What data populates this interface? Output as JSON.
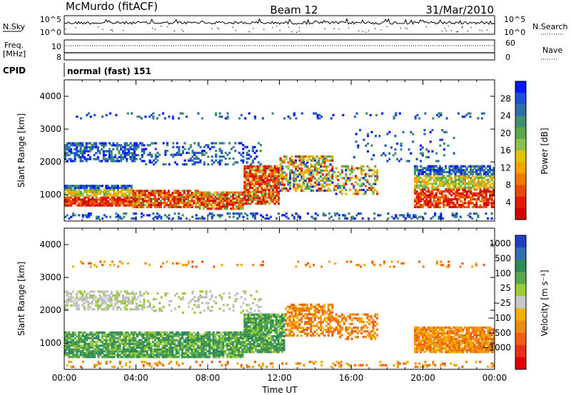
{
  "header": {
    "station": "McMurdo (fitACF)",
    "beam": "Beam 12",
    "date": "31/Mar/2010"
  },
  "status_panels": {
    "nsky_label": "N.Sky",
    "nsky_ticks": [
      "10^5",
      "10^0"
    ],
    "nsearch_label": "N.Search",
    "nsearch_ticks": [
      "10^5",
      "10^0"
    ],
    "freq_label_line1": "Freq.",
    "freq_label_line2": "[MHz]",
    "freq_ticks": [
      "10",
      "8"
    ],
    "nave_label": "Nave",
    "nave_ticks": [
      "60",
      "0"
    ],
    "cpid_label": "CPID",
    "cpid_value": "normal (fast) 151"
  },
  "chart_data": [
    {
      "type": "heatmap",
      "name": "power",
      "ylabel": "Slant Range [km]",
      "xlabel": "",
      "ylim": [
        200,
        4500
      ],
      "xlim": [
        0,
        24
      ],
      "y_ticks": [
        "1000",
        "2000",
        "3000",
        "4000"
      ],
      "x_ticks": [],
      "colorbar": {
        "label": "Power [dB]",
        "ticks": [
          "28",
          "24",
          "20",
          "16",
          "12",
          "8",
          "4"
        ],
        "colors": [
          "#0018ff",
          "#1f4fd6",
          "#2f6ea8",
          "#3f8f70",
          "#5aa84a",
          "#8bc34a",
          "#e0c000",
          "#f5a300",
          "#f07a00",
          "#ea4a00",
          "#e01a00",
          "#d40000"
        ]
      }
    },
    {
      "type": "heatmap",
      "name": "velocity",
      "ylabel": "Slant Range [km]",
      "xlabel": "Time UT",
      "ylim": [
        200,
        4500
      ],
      "xlim": [
        0,
        24
      ],
      "y_ticks": [
        "1000",
        "2000",
        "3000",
        "4000"
      ],
      "x_ticks": [
        "00:00",
        "04:00",
        "08:00",
        "12:00",
        "16:00",
        "20:00",
        "00:00"
      ],
      "colorbar": {
        "label": "Velocity [m s⁻¹]",
        "ticks": [
          "1000",
          "500",
          "100",
          "25",
          "−25",
          "−100",
          "−500",
          "−1000"
        ],
        "colors": [
          "#1f3fbf",
          "#2f6fb0",
          "#2f8a5a",
          "#58a84a",
          "#9acc3a",
          "#c8c8c8",
          "#f0b000",
          "#f08a10",
          "#f06010",
          "#e83010",
          "#e00000"
        ]
      }
    }
  ]
}
